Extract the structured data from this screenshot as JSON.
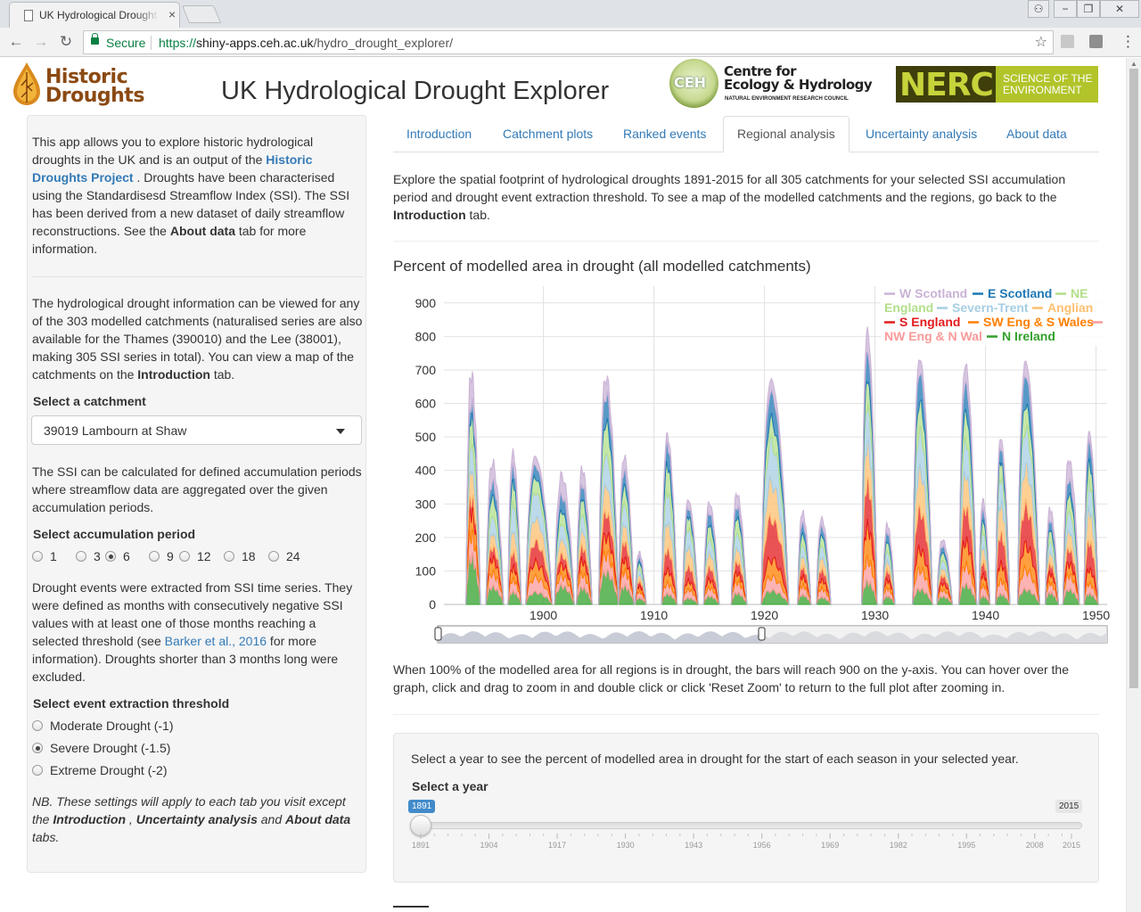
{
  "browser": {
    "tab_title": "UK Hydrological Drought Explorer",
    "secure_label": "Secure",
    "url_scheme": "https://",
    "url_host": "shiny-apps.ceh.ac.uk",
    "url_path": "/hydro_drought_explorer/"
  },
  "header": {
    "logo_line1": "Historic",
    "logo_line2": "Droughts",
    "title": "UK Hydrological Drought Explorer",
    "ceh_badge": "CEH",
    "ceh_line1": "Centre for",
    "ceh_line2": "Ecology & Hydrology",
    "ceh_line3": "NATURAL ENVIRONMENT RESEARCH COUNCIL",
    "nerc_mark": "NERC",
    "nerc_line1": "SCIENCE OF THE",
    "nerc_line2": "ENVIRONMENT"
  },
  "sidebar": {
    "p1_a": "This app allows you to explore historic hydrological droughts in the UK and is an output of the ",
    "p1_link": "Historic Droughts Project",
    "p1_b": " . Droughts have been characterised using the Standardisesd Streamflow Index (SSI). The SSI has been derived from a new dataset of daily streamflow reconstructions. See the ",
    "p1_bold": "About data",
    "p1_c": " tab for more information.",
    "p2_a": "The hydrological drought information can be viewed for any of the 303 modelled catchments (naturalised series are also available for the Thames (390010) and the Lee (38001), making 305 SSI series in total). You can view a map of the catchments on the ",
    "p2_bold": "Introduction",
    "p2_b": " tab.",
    "catchment_label": "Select a catchment",
    "catchment_value": "39019 Lambourn at Shaw",
    "p3": "The SSI can be calculated for defined accumulation periods where streamflow data are aggregated over the given accumulation periods.",
    "accum_label": "Select accumulation period",
    "accum_options": [
      "1",
      "3",
      "6",
      "9",
      "12",
      "18",
      "24"
    ],
    "accum_selected": "6",
    "p4_a": "Drought events were extracted from SSI time series. They were defined as months with consecutively negative SSI values with at least one of those months reaching a selected threshold (see ",
    "p4_link": "Barker et al., 2016",
    "p4_b": " for more information). Droughts shorter than 3 months long were excluded.",
    "threshold_label": "Select event extraction threshold",
    "threshold_options": [
      "Moderate Drought (-1)",
      "Severe Drought (-1.5)",
      "Extreme Drought (-2)"
    ],
    "threshold_selected": "Severe Drought (-1.5)",
    "nb_a": "NB. These settings will apply to each tab you visit except the ",
    "nb_b1": "Introduction",
    "nb_sep1": " , ",
    "nb_b2": "Uncertainty analysis",
    "nb_sep2": " and ",
    "nb_b3": "About data",
    "nb_end": " tabs."
  },
  "tabs": [
    "Introduction",
    "Catchment plots",
    "Ranked events",
    "Regional analysis",
    "Uncertainty analysis",
    "About data"
  ],
  "active_tab": "Regional analysis",
  "main": {
    "intro_a": "Explore the spatial footprint of hydrological droughts 1891-2015 for all 305 catchments for your selected SSI accumulation period and drought event extraction threshold. To see a map of the modelled catchments and the regions, go back to the ",
    "intro_bold": "Introduction",
    "intro_b": " tab.",
    "chart_title": "Percent of modelled area in drought (all modelled catchments)",
    "note": "When 100% of the modelled area for all regions is in drought, the bars will reach 900 on the y-axis. You can hover over the graph, click and drag to zoom in and double click or click 'Reset Zoom' to return to the full plot after zooming in.",
    "season_text": "Select a year to see the percent of modelled area in drought for the start of each season in your selected year.",
    "year_label": "Select a year",
    "year_min": "1891",
    "year_max": "2015",
    "year_value": "1891",
    "year_ticks": [
      "1891",
      "1904",
      "1917",
      "1930",
      "1943",
      "1956",
      "1969",
      "1982",
      "1995",
      "2008",
      "2015"
    ]
  },
  "chart_data": {
    "type": "area",
    "stacked": true,
    "title": "Percent of modelled area in drought (all modelled catchments)",
    "xlabel": "",
    "ylabel": "",
    "xlim": [
      1891,
      1951
    ],
    "ylim": [
      0,
      950
    ],
    "x_ticks": [
      1900,
      1910,
      1920,
      1930,
      1940,
      1950
    ],
    "y_ticks": [
      0,
      100,
      200,
      300,
      400,
      500,
      600,
      700,
      800,
      900
    ],
    "grid": true,
    "legend_position": "top-right",
    "series_order_from_bottom": [
      "N Ireland",
      "NW Eng & N Wal",
      "SW Eng & S Wales",
      "S England",
      "Anglian",
      "Severn-Trent",
      "NE England",
      "E Scotland",
      "W Scotland"
    ],
    "series": [
      {
        "name": "W Scotland",
        "color": "#cab2d6"
      },
      {
        "name": "E Scotland",
        "color": "#1f78b4"
      },
      {
        "name": "NE England",
        "color": "#b2df8a"
      },
      {
        "name": "Severn-Trent",
        "color": "#a6cee3"
      },
      {
        "name": "Anglian",
        "color": "#fdbf6f"
      },
      {
        "name": "S England",
        "color": "#e31a1c"
      },
      {
        "name": "SW Eng & S Wales",
        "color": "#ff7f00"
      },
      {
        "name": "NW Eng & N Wal",
        "color": "#fb9a99"
      },
      {
        "name": "N Ireland",
        "color": "#33a02c"
      }
    ],
    "events": [
      {
        "start": 1893.0,
        "end": 1894.3,
        "total": 750,
        "shares": [
          0.13,
          0.06,
          0.12,
          0.11,
          0.12,
          0.06,
          0.1,
          0.1,
          0.2
        ]
      },
      {
        "start": 1894.8,
        "end": 1896.4,
        "total": 460,
        "shares": [
          0.14,
          0.1,
          0.14,
          0.12,
          0.1,
          0.08,
          0.1,
          0.1,
          0.12
        ]
      },
      {
        "start": 1896.8,
        "end": 1898.0,
        "total": 495,
        "shares": [
          0.1,
          0.1,
          0.14,
          0.18,
          0.14,
          0.1,
          0.08,
          0.08,
          0.08
        ]
      },
      {
        "start": 1898.4,
        "end": 1900.8,
        "total": 480,
        "shares": [
          0.06,
          0.08,
          0.1,
          0.18,
          0.16,
          0.14,
          0.1,
          0.1,
          0.08
        ]
      },
      {
        "start": 1901.0,
        "end": 1902.8,
        "total": 420,
        "shares": [
          0.16,
          0.12,
          0.1,
          0.12,
          0.12,
          0.08,
          0.08,
          0.08,
          0.14
        ]
      },
      {
        "start": 1903.0,
        "end": 1904.4,
        "total": 440,
        "shares": [
          0.12,
          0.1,
          0.12,
          0.12,
          0.12,
          0.1,
          0.1,
          0.1,
          0.12
        ]
      },
      {
        "start": 1905.0,
        "end": 1906.8,
        "total": 740,
        "shares": [
          0.08,
          0.12,
          0.14,
          0.14,
          0.12,
          0.1,
          0.08,
          0.08,
          0.14
        ]
      },
      {
        "start": 1906.8,
        "end": 1908.2,
        "total": 480,
        "shares": [
          0.1,
          0.1,
          0.12,
          0.14,
          0.12,
          0.12,
          0.08,
          0.1,
          0.12
        ]
      },
      {
        "start": 1908.3,
        "end": 1909.3,
        "total": 170,
        "shares": [
          0.1,
          0.1,
          0.12,
          0.12,
          0.12,
          0.1,
          0.1,
          0.12,
          0.12
        ]
      },
      {
        "start": 1910.7,
        "end": 1912.1,
        "total": 550,
        "shares": [
          0.06,
          0.12,
          0.16,
          0.18,
          0.16,
          0.12,
          0.08,
          0.06,
          0.06
        ]
      },
      {
        "start": 1912.6,
        "end": 1914.0,
        "total": 340,
        "shares": [
          0.08,
          0.08,
          0.12,
          0.18,
          0.18,
          0.14,
          0.08,
          0.08,
          0.06
        ]
      },
      {
        "start": 1914.5,
        "end": 1915.9,
        "total": 330,
        "shares": [
          0.1,
          0.12,
          0.14,
          0.14,
          0.14,
          0.12,
          0.08,
          0.08,
          0.08
        ]
      },
      {
        "start": 1917.0,
        "end": 1918.4,
        "total": 360,
        "shares": [
          0.12,
          0.1,
          0.14,
          0.14,
          0.12,
          0.1,
          0.08,
          0.1,
          0.1
        ]
      },
      {
        "start": 1919.7,
        "end": 1922.2,
        "total": 730,
        "shares": [
          0.06,
          0.12,
          0.1,
          0.18,
          0.16,
          0.18,
          0.08,
          0.06,
          0.06
        ]
      },
      {
        "start": 1923.0,
        "end": 1924.2,
        "total": 300,
        "shares": [
          0.12,
          0.12,
          0.12,
          0.12,
          0.12,
          0.1,
          0.1,
          0.1,
          0.1
        ]
      },
      {
        "start": 1924.7,
        "end": 1926.0,
        "total": 280,
        "shares": [
          0.1,
          0.1,
          0.12,
          0.14,
          0.14,
          0.12,
          0.1,
          0.1,
          0.08
        ]
      },
      {
        "start": 1928.8,
        "end": 1930.2,
        "total": 890,
        "shares": [
          0.08,
          0.1,
          0.1,
          0.14,
          0.14,
          0.16,
          0.12,
          0.08,
          0.08
        ]
      },
      {
        "start": 1930.7,
        "end": 1931.8,
        "total": 260,
        "shares": [
          0.1,
          0.12,
          0.12,
          0.12,
          0.12,
          0.12,
          0.1,
          0.1,
          0.1
        ]
      },
      {
        "start": 1933.4,
        "end": 1935.2,
        "total": 800,
        "shares": [
          0.06,
          0.12,
          0.12,
          0.16,
          0.16,
          0.16,
          0.08,
          0.08,
          0.06
        ]
      },
      {
        "start": 1935.6,
        "end": 1937.0,
        "total": 210,
        "shares": [
          0.1,
          0.1,
          0.12,
          0.12,
          0.12,
          0.12,
          0.1,
          0.1,
          0.12
        ]
      },
      {
        "start": 1937.6,
        "end": 1939.2,
        "total": 780,
        "shares": [
          0.08,
          0.12,
          0.12,
          0.14,
          0.14,
          0.14,
          0.1,
          0.08,
          0.08
        ]
      },
      {
        "start": 1939.4,
        "end": 1940.4,
        "total": 340,
        "shares": [
          0.1,
          0.1,
          0.12,
          0.14,
          0.14,
          0.12,
          0.1,
          0.1,
          0.08
        ]
      },
      {
        "start": 1940.9,
        "end": 1942.2,
        "total": 540,
        "shares": [
          0.06,
          0.08,
          0.1,
          0.16,
          0.18,
          0.18,
          0.1,
          0.08,
          0.06
        ]
      },
      {
        "start": 1942.9,
        "end": 1944.9,
        "total": 790,
        "shares": [
          0.06,
          0.12,
          0.1,
          0.16,
          0.16,
          0.16,
          0.1,
          0.08,
          0.06
        ]
      },
      {
        "start": 1945.4,
        "end": 1946.6,
        "total": 310,
        "shares": [
          0.12,
          0.1,
          0.12,
          0.12,
          0.12,
          0.1,
          0.1,
          0.1,
          0.12
        ]
      },
      {
        "start": 1947.0,
        "end": 1948.5,
        "total": 470,
        "shares": [
          0.14,
          0.1,
          0.12,
          0.14,
          0.12,
          0.1,
          0.08,
          0.1,
          0.1
        ]
      },
      {
        "start": 1948.9,
        "end": 1950.2,
        "total": 560,
        "shares": [
          0.06,
          0.12,
          0.12,
          0.16,
          0.18,
          0.16,
          0.08,
          0.06,
          0.06
        ]
      }
    ]
  }
}
